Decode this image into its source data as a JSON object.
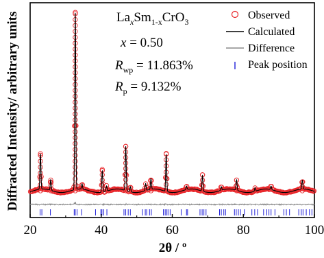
{
  "chart_data": {
    "type": "line",
    "title": "",
    "xlabel": "2θ / º",
    "ylabel": "Diffracted Intensity/ arbitrary units",
    "xlim": [
      20,
      100
    ],
    "x_ticks": [
      "20",
      "40",
      "60",
      "80",
      "100"
    ],
    "y_ticks_shown": false,
    "grid": false,
    "legend_position": "top-right",
    "annotations": {
      "formula_base": "La",
      "formula_sub_x": "x",
      "formula_mid": "Sm",
      "formula_sub_1x": "1-x",
      "formula_end": "CrO",
      "formula_sub_3": "3",
      "x_var": "x",
      "x_eq": " = 0.50",
      "rwp_R": "R",
      "rwp_sub": "wp",
      "rwp_val": " = 11.863%",
      "rp_R": "R",
      "rp_sub": "p",
      "rp_val": " = 9.132%"
    },
    "series": [
      {
        "name": "Observed",
        "style": "open-circle",
        "color": "#e8262a"
      },
      {
        "name": "Calculated",
        "style": "line",
        "color": "#000000"
      },
      {
        "name": "Difference",
        "style": "line",
        "color": "#8a8a8a"
      },
      {
        "name": "Peak position",
        "style": "tick",
        "color": "#1f1fd8"
      }
    ],
    "peaks": [
      {
        "x": 22.9,
        "y": 0.2
      },
      {
        "x": 25.8,
        "y": 0.06
      },
      {
        "x": 32.7,
        "y": 1.0
      },
      {
        "x": 34.6,
        "y": 0.03
      },
      {
        "x": 40.3,
        "y": 0.12
      },
      {
        "x": 41.5,
        "y": 0.03
      },
      {
        "x": 46.9,
        "y": 0.25
      },
      {
        "x": 48.2,
        "y": 0.03
      },
      {
        "x": 52.5,
        "y": 0.04
      },
      {
        "x": 54.0,
        "y": 0.06
      },
      {
        "x": 58.3,
        "y": 0.21
      },
      {
        "x": 64.0,
        "y": 0.02
      },
      {
        "x": 68.5,
        "y": 0.09
      },
      {
        "x": 73.8,
        "y": 0.02
      },
      {
        "x": 78.1,
        "y": 0.06
      },
      {
        "x": 83.3,
        "y": 0.02
      },
      {
        "x": 87.8,
        "y": 0.02
      },
      {
        "x": 96.6,
        "y": 0.05
      }
    ],
    "peak_positions": [
      22.8,
      23.3,
      25.7,
      32.4,
      32.7,
      33.2,
      34.5,
      38.4,
      39.9,
      40.2,
      40.7,
      41.6,
      46.4,
      46.9,
      47.6,
      48.2,
      51.6,
      52.4,
      52.8,
      53.6,
      54.1,
      57.5,
      58.0,
      58.4,
      58.8,
      59.4,
      62.5,
      64.0,
      64.3,
      67.8,
      68.4,
      68.9,
      69.5,
      73.3,
      73.8,
      74.5,
      75.0,
      77.5,
      78.0,
      78.6,
      79.2,
      80.3,
      82.4,
      83.2,
      84.0,
      85.7,
      86.6,
      87.2,
      87.8,
      88.9,
      91.4,
      92.1,
      93.0,
      95.6,
      96.3,
      96.8,
      97.7,
      98.6,
      99.3
    ]
  }
}
